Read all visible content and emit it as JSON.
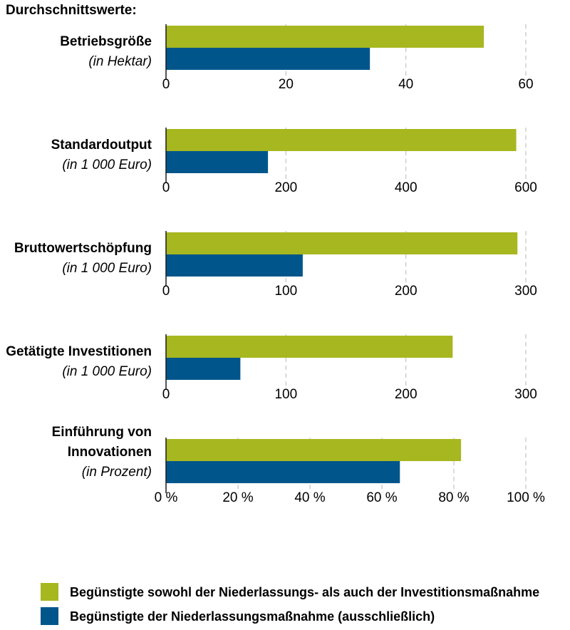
{
  "colors": {
    "green": "#a7b71f",
    "blue": "#00568b",
    "grid": "#c8c8c8",
    "axis": "#1a1a1a"
  },
  "chart_data": {
    "type": "bar",
    "orientation": "horizontal",
    "title": "Durchschnittswerte:",
    "series": [
      {
        "name": "Begünstigte sowohl der Niederlassungs- als auch der Investitionsmaßnahme",
        "color": "#a7b71f"
      },
      {
        "name": "Begünstigte der Niederlassungsmaßnahme (ausschließlich)",
        "color": "#00568b"
      }
    ],
    "legend_position": "bottom-left",
    "grid": "dashed-vertical",
    "panels": [
      {
        "label_lines": [
          "Betriebsgröße"
        ],
        "unit": "(in Hektar)",
        "xlim": [
          0,
          60
        ],
        "ticks": [
          0,
          20,
          40,
          60
        ],
        "tick_labels": [
          "0",
          "20",
          "40",
          "60"
        ],
        "values": [
          53,
          34
        ]
      },
      {
        "label_lines": [
          "Standardoutput"
        ],
        "unit": "(in 1 000 Euro)",
        "xlim": [
          0,
          600
        ],
        "ticks": [
          0,
          200,
          400,
          600
        ],
        "tick_labels": [
          "0",
          "200",
          "400",
          "600"
        ],
        "values": [
          584,
          170
        ]
      },
      {
        "label_lines": [
          "Bruttowertschöpfung"
        ],
        "unit": "(in 1 000 Euro)",
        "xlim": [
          0,
          300
        ],
        "ticks": [
          0,
          100,
          200,
          300
        ],
        "tick_labels": [
          "0",
          "100",
          "200",
          "300"
        ],
        "values": [
          293,
          114
        ]
      },
      {
        "label_lines": [
          "Getätigte Investitionen"
        ],
        "unit": "(in 1 000 Euro)",
        "xlim": [
          0,
          300
        ],
        "ticks": [
          0,
          100,
          200,
          300
        ],
        "tick_labels": [
          "0",
          "100",
          "200",
          "300"
        ],
        "values": [
          239,
          62
        ]
      },
      {
        "label_lines": [
          "Einführung von",
          "Innovationen"
        ],
        "unit": "(in Prozent)",
        "xlim": [
          0,
          100
        ],
        "ticks": [
          0,
          20,
          40,
          60,
          80,
          100
        ],
        "tick_labels": [
          "0 %",
          "20 %",
          "40 %",
          "60 %",
          "80 %",
          "100 %"
        ],
        "values": [
          82,
          65
        ]
      }
    ]
  }
}
